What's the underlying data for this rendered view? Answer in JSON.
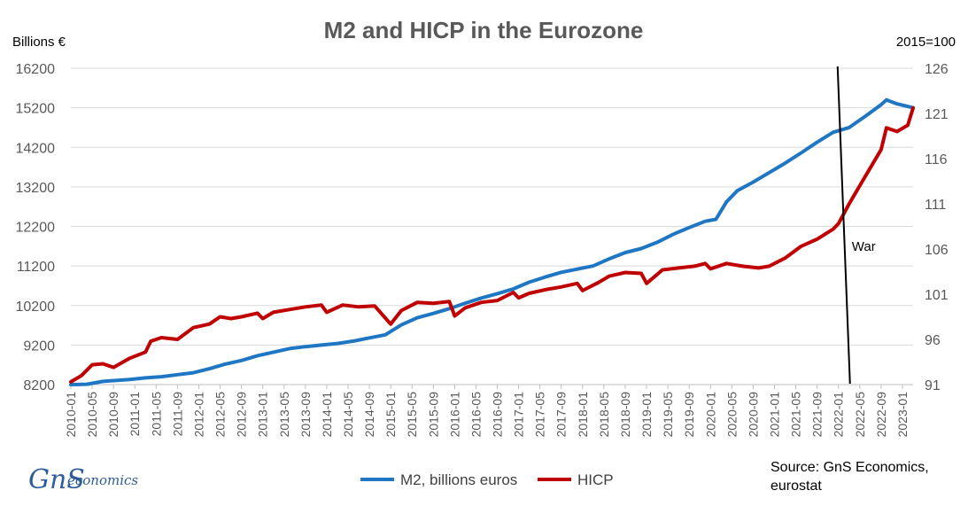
{
  "chart_data": {
    "type": "line",
    "title": "M2 and HICP in the Eurozone",
    "y_left_unit": "Billions €",
    "y_right_unit": "2015=100",
    "y_left_ticks": [
      "16200",
      "15200",
      "14200",
      "13200",
      "12200",
      "11200",
      "10200",
      "9200",
      "8200"
    ],
    "y_right_ticks": [
      "126",
      "121",
      "116",
      "111",
      "106",
      "101",
      "96",
      "91"
    ],
    "ylim_left": [
      8200,
      16200
    ],
    "ylim_right": [
      91,
      126
    ],
    "x_tick_labels": [
      "2010-01",
      "2010-05",
      "2010-09",
      "2011-01",
      "2011-05",
      "2011-09",
      "2012-01",
      "2012-05",
      "2012-09",
      "2013-01",
      "2013-05",
      "2013-09",
      "2014-01",
      "2014-05",
      "2014-09",
      "2015-01",
      "2015-05",
      "2015-09",
      "2016-01",
      "2016-05",
      "2016-09",
      "2017-01",
      "2017-05",
      "2017-09",
      "2018-01",
      "2018-05",
      "2018-09",
      "2019-01",
      "2019-05",
      "2019-09",
      "2020-01",
      "2020-05",
      "2020-09",
      "2021-01",
      "2021-05",
      "2021-09",
      "2022-01",
      "2022-05",
      "2022-09",
      "2023-01"
    ],
    "x_start": "2010-01",
    "x_end": "2023-03",
    "grid": true,
    "legend_position": "bottom",
    "series": [
      {
        "name": "M2, billions euros",
        "axis": "left",
        "color": "#1F77C4",
        "anchors": [
          [
            "2010-01",
            8200
          ],
          [
            "2010-04",
            8210
          ],
          [
            "2010-07",
            8280
          ],
          [
            "2010-12",
            8330
          ],
          [
            "2011-03",
            8370
          ],
          [
            "2011-06",
            8400
          ],
          [
            "2011-09",
            8450
          ],
          [
            "2011-12",
            8500
          ],
          [
            "2012-03",
            8600
          ],
          [
            "2012-06",
            8720
          ],
          [
            "2012-09",
            8810
          ],
          [
            "2012-12",
            8930
          ],
          [
            "2013-03",
            9020
          ],
          [
            "2013-06",
            9110
          ],
          [
            "2013-09",
            9160
          ],
          [
            "2013-12",
            9200
          ],
          [
            "2014-03",
            9240
          ],
          [
            "2014-06",
            9300
          ],
          [
            "2014-09",
            9380
          ],
          [
            "2014-12",
            9460
          ],
          [
            "2015-03",
            9710
          ],
          [
            "2015-06",
            9890
          ],
          [
            "2015-09",
            10000
          ],
          [
            "2015-12",
            10120
          ],
          [
            "2016-03",
            10260
          ],
          [
            "2016-06",
            10390
          ],
          [
            "2016-09",
            10500
          ],
          [
            "2016-12",
            10620
          ],
          [
            "2017-03",
            10790
          ],
          [
            "2017-06",
            10920
          ],
          [
            "2017-09",
            11040
          ],
          [
            "2017-12",
            11120
          ],
          [
            "2018-03",
            11200
          ],
          [
            "2018-06",
            11380
          ],
          [
            "2018-09",
            11540
          ],
          [
            "2018-12",
            11640
          ],
          [
            "2019-03",
            11800
          ],
          [
            "2019-06",
            12000
          ],
          [
            "2019-09",
            12170
          ],
          [
            "2019-12",
            12330
          ],
          [
            "2020-02",
            12380
          ],
          [
            "2020-04",
            12820
          ],
          [
            "2020-06",
            13100
          ],
          [
            "2020-09",
            13320
          ],
          [
            "2020-12",
            13560
          ],
          [
            "2021-03",
            13800
          ],
          [
            "2021-06",
            14060
          ],
          [
            "2021-09",
            14330
          ],
          [
            "2021-12",
            14580
          ],
          [
            "2022-03",
            14700
          ],
          [
            "2022-06",
            14980
          ],
          [
            "2022-09",
            15280
          ],
          [
            "2022-10",
            15400
          ],
          [
            "2022-12",
            15300
          ],
          [
            "2023-03",
            15200
          ]
        ]
      },
      {
        "name": "HICP",
        "axis": "right",
        "color": "#C00000",
        "anchors": [
          [
            "2010-01",
            91.3
          ],
          [
            "2010-03",
            92.0
          ],
          [
            "2010-05",
            93.2
          ],
          [
            "2010-07",
            93.3
          ],
          [
            "2010-09",
            92.9
          ],
          [
            "2010-12",
            93.9
          ],
          [
            "2011-03",
            94.6
          ],
          [
            "2011-04",
            95.8
          ],
          [
            "2011-06",
            96.2
          ],
          [
            "2011-09",
            96.0
          ],
          [
            "2011-12",
            97.3
          ],
          [
            "2012-03",
            97.7
          ],
          [
            "2012-05",
            98.5
          ],
          [
            "2012-07",
            98.3
          ],
          [
            "2012-09",
            98.5
          ],
          [
            "2012-12",
            98.9
          ],
          [
            "2013-01",
            98.3
          ],
          [
            "2013-03",
            99.0
          ],
          [
            "2013-06",
            99.3
          ],
          [
            "2013-09",
            99.6
          ],
          [
            "2013-12",
            99.8
          ],
          [
            "2014-01",
            99.0
          ],
          [
            "2014-04",
            99.8
          ],
          [
            "2014-07",
            99.6
          ],
          [
            "2014-10",
            99.7
          ],
          [
            "2015-01",
            97.7
          ],
          [
            "2015-03",
            99.2
          ],
          [
            "2015-06",
            100.1
          ],
          [
            "2015-09",
            100.0
          ],
          [
            "2015-12",
            100.2
          ],
          [
            "2016-01",
            98.6
          ],
          [
            "2016-03",
            99.5
          ],
          [
            "2016-06",
            100.1
          ],
          [
            "2016-09",
            100.3
          ],
          [
            "2016-12",
            101.2
          ],
          [
            "2017-01",
            100.6
          ],
          [
            "2017-03",
            101.1
          ],
          [
            "2017-06",
            101.5
          ],
          [
            "2017-09",
            101.8
          ],
          [
            "2017-12",
            102.2
          ],
          [
            "2018-01",
            101.4
          ],
          [
            "2018-04",
            102.3
          ],
          [
            "2018-06",
            103.0
          ],
          [
            "2018-09",
            103.4
          ],
          [
            "2018-12",
            103.3
          ],
          [
            "2019-01",
            102.2
          ],
          [
            "2019-04",
            103.7
          ],
          [
            "2019-07",
            103.9
          ],
          [
            "2019-10",
            104.1
          ],
          [
            "2019-12",
            104.4
          ],
          [
            "2020-01",
            103.8
          ],
          [
            "2020-04",
            104.4
          ],
          [
            "2020-07",
            104.1
          ],
          [
            "2020-10",
            103.9
          ],
          [
            "2020-12",
            104.1
          ],
          [
            "2021-03",
            105.0
          ],
          [
            "2021-06",
            106.3
          ],
          [
            "2021-09",
            107.1
          ],
          [
            "2021-12",
            108.2
          ],
          [
            "2022-01",
            108.8
          ],
          [
            "2022-03",
            111.0
          ],
          [
            "2022-06",
            114.0
          ],
          [
            "2022-09",
            117.0
          ],
          [
            "2022-10",
            119.4
          ],
          [
            "2022-12",
            119.0
          ],
          [
            "2023-02",
            119.7
          ],
          [
            "2023-03",
            121.6
          ]
        ]
      }
    ],
    "annotations": [
      {
        "text": "War",
        "date": "2022-02"
      }
    ]
  },
  "source_text_line1": "Source: GnS Economics,",
  "source_text_line2": "eurostat",
  "logo": {
    "main": "GnS",
    "sub": "economics"
  }
}
